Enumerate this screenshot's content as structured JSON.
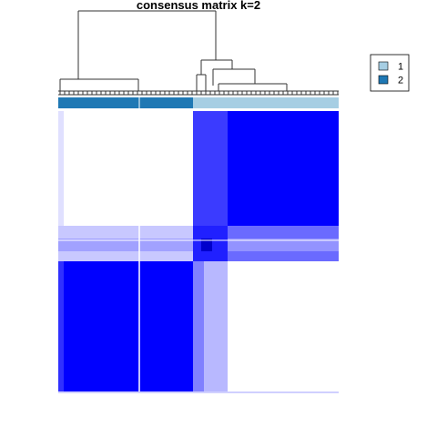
{
  "chart_data": {
    "type": "heatmap",
    "title": "consensus matrix k=2",
    "legend": {
      "placement": "top-right",
      "entries": [
        {
          "label": "1",
          "color": "#a6cee3"
        },
        {
          "label": "2",
          "color": "#1f78b4"
        }
      ]
    },
    "colors": {
      "high": "#0000ff",
      "low": "#ffffff",
      "cluster_1": "#a6cee3",
      "cluster_2": "#1f78b4"
    },
    "value_range": [
      0,
      1
    ],
    "annotation_bar": [
      "2",
      "2",
      "1",
      "1",
      "1"
    ],
    "blocks": [
      {
        "rows": "cluster-2",
        "cols": "cluster-2",
        "consensus": 0.0
      },
      {
        "rows": "cluster-2",
        "cols": "cluster-1",
        "consensus": 1.0
      },
      {
        "rows": "cluster-1",
        "cols": "cluster-2",
        "consensus": 1.0
      },
      {
        "rows": "cluster-1",
        "cols": "cluster-1",
        "consensus": 0.0
      },
      {
        "rows": "ambiguous",
        "cols": "all",
        "consensus": 0.3
      }
    ]
  }
}
